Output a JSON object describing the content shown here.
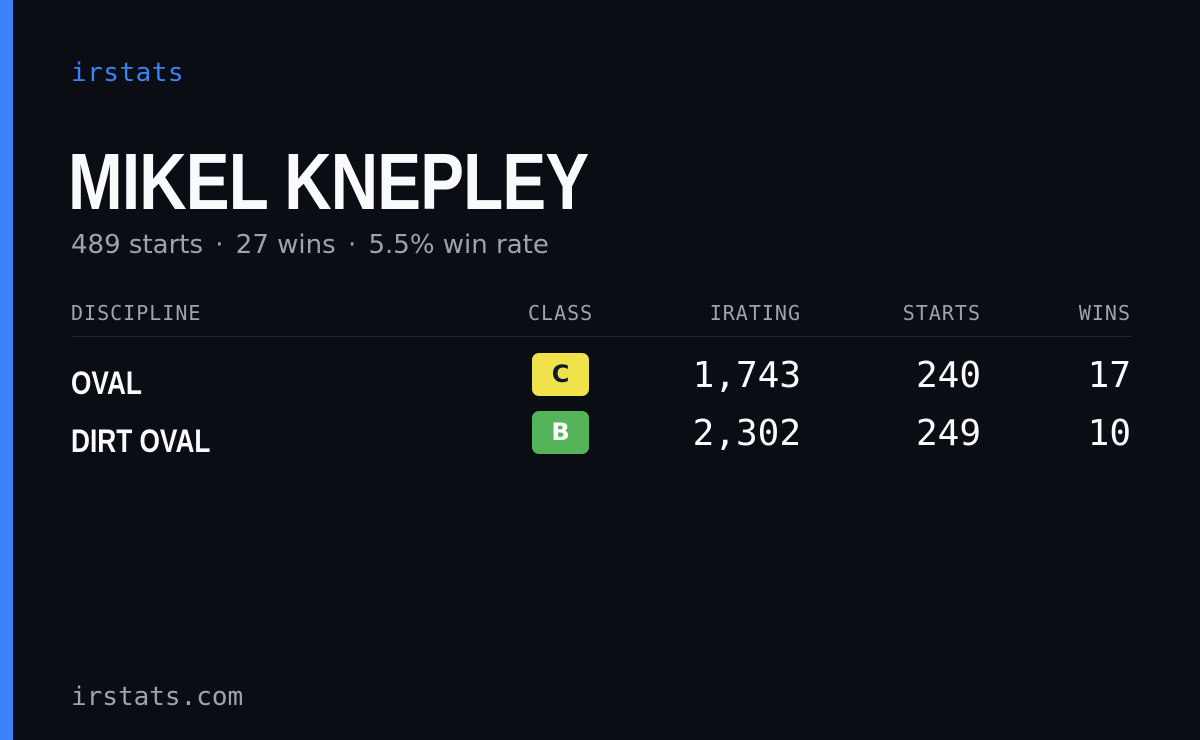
{
  "brand": "irstats",
  "driver": {
    "name": "MIKEL KNEPLEY",
    "starts_text": "489 starts",
    "wins_text": "27 wins",
    "win_rate_text": "5.5% win rate",
    "separator": "·"
  },
  "table": {
    "headers": {
      "discipline": "DISCIPLINE",
      "class": "CLASS",
      "irating": "IRATING",
      "starts": "STARTS",
      "wins": "WINS"
    },
    "rows": [
      {
        "discipline": "OVAL",
        "class": "C",
        "class_color": "#efe24a",
        "irating": "1,743",
        "starts": "240",
        "wins": "17"
      },
      {
        "discipline": "DIRT OVAL",
        "class": "B",
        "class_color": "#55b45a",
        "irating": "2,302",
        "starts": "249",
        "wins": "10"
      }
    ]
  },
  "footer": "irstats.com",
  "colors": {
    "background": "#0a0d14",
    "accent": "#3b82f6",
    "text": "#f8fafc",
    "muted": "#9ca3af"
  }
}
